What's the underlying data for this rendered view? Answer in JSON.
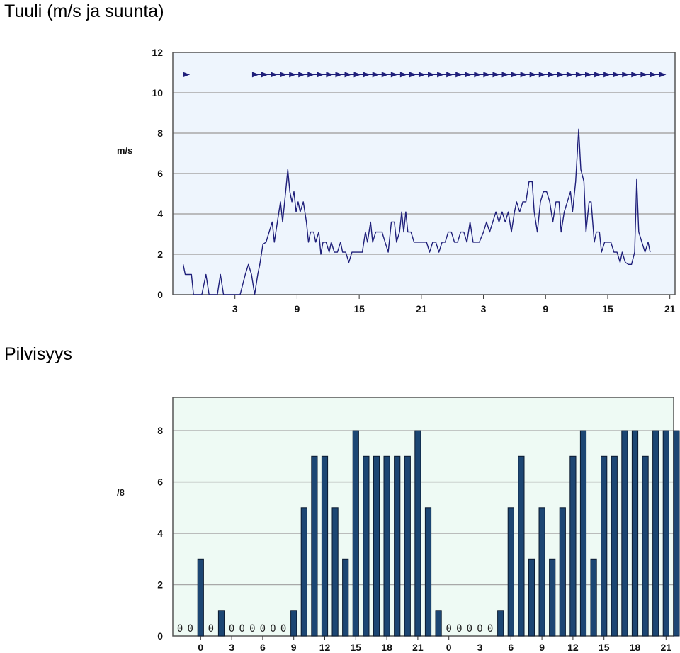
{
  "sections": {
    "wind_title": "Tuuli (m/s ja suunta)",
    "cloud_title": "Pilvisyys"
  },
  "colors": {
    "wind_bg": "#eef5fd",
    "cloud_bg": "#eefaf4",
    "line": "#1f1f7a",
    "bar": "#1c4673",
    "grid": "#a8a8a8"
  },
  "chart_data": [
    {
      "type": "line",
      "title": "Tuuli (m/s ja suunta)",
      "ylabel": "m/s",
      "ylim": [
        0,
        12
      ],
      "yticks": [
        0,
        2,
        4,
        6,
        8,
        10,
        12
      ],
      "xlim": [
        0,
        48.5
      ],
      "xticks": [
        {
          "x": 6,
          "label": "3"
        },
        {
          "x": 12,
          "label": "9"
        },
        {
          "x": 18,
          "label": "15"
        },
        {
          "x": 24,
          "label": "21"
        },
        {
          "x": 30,
          "label": "3"
        },
        {
          "x": 36,
          "label": "9"
        },
        {
          "x": 42,
          "label": "15"
        },
        {
          "x": 48,
          "label": "21"
        }
      ],
      "grid": true,
      "series": [
        {
          "values": [
            [
              1.0,
              1.5
            ],
            [
              1.2,
              1.0
            ],
            [
              1.5,
              1.0
            ],
            [
              1.8,
              1.0
            ],
            [
              2.0,
              0
            ],
            [
              2.3,
              0
            ],
            [
              2.6,
              0
            ],
            [
              2.8,
              0
            ],
            [
              3.2,
              1.0
            ],
            [
              3.5,
              0
            ],
            [
              3.8,
              0
            ],
            [
              4.3,
              0
            ],
            [
              4.6,
              1.0
            ],
            [
              4.9,
              0
            ],
            [
              5.3,
              0
            ],
            [
              6.5,
              0
            ],
            [
              7.0,
              1.0
            ],
            [
              7.3,
              1.5
            ],
            [
              7.6,
              1.0
            ],
            [
              7.9,
              0
            ],
            [
              8.2,
              1.0
            ],
            [
              8.4,
              1.5
            ],
            [
              8.7,
              2.5
            ],
            [
              9.0,
              2.6
            ],
            [
              9.3,
              3.1
            ],
            [
              9.6,
              3.6
            ],
            [
              9.8,
              2.6
            ],
            [
              10.1,
              3.6
            ],
            [
              10.4,
              4.6
            ],
            [
              10.6,
              3.6
            ],
            [
              10.9,
              5.1
            ],
            [
              11.1,
              6.2
            ],
            [
              11.3,
              5.1
            ],
            [
              11.5,
              4.6
            ],
            [
              11.7,
              5.1
            ],
            [
              11.9,
              4.1
            ],
            [
              12.1,
              4.6
            ],
            [
              12.3,
              4.1
            ],
            [
              12.6,
              4.6
            ],
            [
              12.9,
              3.6
            ],
            [
              13.1,
              2.6
            ],
            [
              13.3,
              3.1
            ],
            [
              13.6,
              3.1
            ],
            [
              13.8,
              2.6
            ],
            [
              14.1,
              3.1
            ],
            [
              14.3,
              2.0
            ],
            [
              14.5,
              2.6
            ],
            [
              14.8,
              2.6
            ],
            [
              15.1,
              2.1
            ],
            [
              15.3,
              2.6
            ],
            [
              15.6,
              2.1
            ],
            [
              15.9,
              2.1
            ],
            [
              16.2,
              2.6
            ],
            [
              16.4,
              2.1
            ],
            [
              16.7,
              2.1
            ],
            [
              17.0,
              1.6
            ],
            [
              17.3,
              2.1
            ],
            [
              17.6,
              2.1
            ],
            [
              18.0,
              2.1
            ],
            [
              18.3,
              2.1
            ],
            [
              18.6,
              3.1
            ],
            [
              18.8,
              2.6
            ],
            [
              19.1,
              3.6
            ],
            [
              19.3,
              2.6
            ],
            [
              19.6,
              3.1
            ],
            [
              19.9,
              3.1
            ],
            [
              20.2,
              3.1
            ],
            [
              20.5,
              2.6
            ],
            [
              20.8,
              2.1
            ],
            [
              21.1,
              3.6
            ],
            [
              21.4,
              3.6
            ],
            [
              21.6,
              2.6
            ],
            [
              21.9,
              3.1
            ],
            [
              22.1,
              4.1
            ],
            [
              22.3,
              3.1
            ],
            [
              22.5,
              4.1
            ],
            [
              22.7,
              3.1
            ],
            [
              23.0,
              3.1
            ],
            [
              23.3,
              2.6
            ],
            [
              23.6,
              2.6
            ],
            [
              23.9,
              2.6
            ],
            [
              24.2,
              2.6
            ],
            [
              24.5,
              2.6
            ],
            [
              24.8,
              2.1
            ],
            [
              25.1,
              2.6
            ],
            [
              25.4,
              2.6
            ],
            [
              25.7,
              2.1
            ],
            [
              26.0,
              2.6
            ],
            [
              26.3,
              2.6
            ],
            [
              26.6,
              3.1
            ],
            [
              26.9,
              3.1
            ],
            [
              27.2,
              2.6
            ],
            [
              27.5,
              2.6
            ],
            [
              27.8,
              3.1
            ],
            [
              28.1,
              3.1
            ],
            [
              28.4,
              2.6
            ],
            [
              28.7,
              3.6
            ],
            [
              29.0,
              2.6
            ],
            [
              29.3,
              2.6
            ],
            [
              29.6,
              2.6
            ],
            [
              30.0,
              3.1
            ],
            [
              30.3,
              3.6
            ],
            [
              30.6,
              3.1
            ],
            [
              30.9,
              3.6
            ],
            [
              31.2,
              4.1
            ],
            [
              31.5,
              3.6
            ],
            [
              31.8,
              4.1
            ],
            [
              32.1,
              3.6
            ],
            [
              32.4,
              4.1
            ],
            [
              32.7,
              3.1
            ],
            [
              33.0,
              4.1
            ],
            [
              33.2,
              4.6
            ],
            [
              33.5,
              4.1
            ],
            [
              33.8,
              4.6
            ],
            [
              34.1,
              4.6
            ],
            [
              34.4,
              5.6
            ],
            [
              34.7,
              5.6
            ],
            [
              34.9,
              4.1
            ],
            [
              35.2,
              3.1
            ],
            [
              35.5,
              4.6
            ],
            [
              35.8,
              5.1
            ],
            [
              36.1,
              5.1
            ],
            [
              36.4,
              4.6
            ],
            [
              36.7,
              3.6
            ],
            [
              37.0,
              4.6
            ],
            [
              37.3,
              4.6
            ],
            [
              37.5,
              3.1
            ],
            [
              37.8,
              4.1
            ],
            [
              38.1,
              4.6
            ],
            [
              38.4,
              5.1
            ],
            [
              38.6,
              4.1
            ],
            [
              38.9,
              5.6
            ],
            [
              39.2,
              8.2
            ],
            [
              39.4,
              6.2
            ],
            [
              39.7,
              5.6
            ],
            [
              39.9,
              3.1
            ],
            [
              40.2,
              4.6
            ],
            [
              40.4,
              4.6
            ],
            [
              40.7,
              2.6
            ],
            [
              40.9,
              3.1
            ],
            [
              41.2,
              3.1
            ],
            [
              41.4,
              2.1
            ],
            [
              41.7,
              2.6
            ],
            [
              42.0,
              2.6
            ],
            [
              42.3,
              2.6
            ],
            [
              42.6,
              2.1
            ],
            [
              42.9,
              2.1
            ],
            [
              43.2,
              1.6
            ],
            [
              43.4,
              2.1
            ],
            [
              43.7,
              1.6
            ],
            [
              44.0,
              1.5
            ],
            [
              44.3,
              1.5
            ],
            [
              44.6,
              2.1
            ],
            [
              44.8,
              5.7
            ],
            [
              45.0,
              3.1
            ],
            [
              45.3,
              2.6
            ],
            [
              45.6,
              2.1
            ],
            [
              45.9,
              2.6
            ],
            [
              46.1,
              2.1
            ]
          ]
        }
      ],
      "arrow_groups": [
        {
          "x_start": 1.0,
          "x_end": 1.6,
          "count": 1
        },
        {
          "x_start": 8.0,
          "x_end": 47.3,
          "count": 45
        }
      ]
    },
    {
      "type": "bar",
      "title": "Pilvisyys",
      "ylabel": "/8",
      "ylim": [
        0,
        9.3
      ],
      "yticks": [
        0,
        2,
        4,
        6,
        8
      ],
      "xticks": [
        {
          "bar": 2,
          "label": "0"
        },
        {
          "bar": 5,
          "label": "3"
        },
        {
          "bar": 8,
          "label": "6"
        },
        {
          "bar": 11,
          "label": "9"
        },
        {
          "bar": 14,
          "label": "12"
        },
        {
          "bar": 17,
          "label": "15"
        },
        {
          "bar": 20,
          "label": "18"
        },
        {
          "bar": 23,
          "label": "21"
        },
        {
          "bar": 26,
          "label": "0"
        },
        {
          "bar": 29,
          "label": "3"
        },
        {
          "bar": 32,
          "label": "6"
        },
        {
          "bar": 35,
          "label": "9"
        },
        {
          "bar": 38,
          "label": "12"
        },
        {
          "bar": 41,
          "label": "15"
        },
        {
          "bar": 44,
          "label": "18"
        },
        {
          "bar": 47,
          "label": "21"
        }
      ],
      "grid": true,
      "values": [
        0,
        0,
        3,
        0,
        1,
        0,
        0,
        0,
        0,
        0,
        0,
        1,
        5,
        7,
        7,
        5,
        3,
        8,
        7,
        7,
        7,
        7,
        7,
        8,
        5,
        1,
        0,
        0,
        0,
        0,
        0,
        1,
        5,
        7,
        3,
        5,
        3,
        5,
        7,
        8,
        3,
        7,
        7,
        8,
        8,
        7,
        8,
        8,
        8
      ],
      "zero_marker": "0"
    }
  ]
}
